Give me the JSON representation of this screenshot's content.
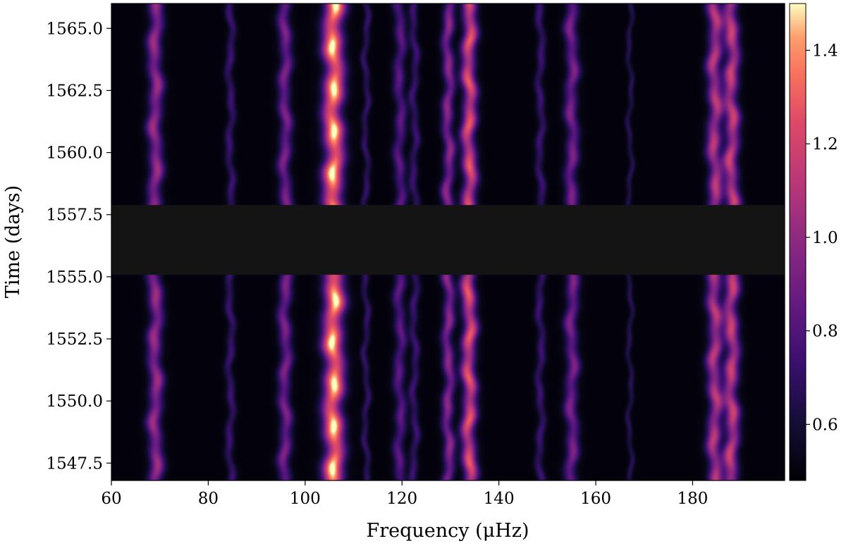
{
  "chart_data": {
    "type": "heatmap",
    "title": "",
    "xlabel": "Frequency (μHz)",
    "ylabel": "Time (days)",
    "xlim": [
      60,
      199
    ],
    "ylim": [
      1546.8,
      1566.0
    ],
    "x_ticks": [
      60,
      80,
      100,
      120,
      140,
      160,
      180
    ],
    "x_tick_labels": [
      "60",
      "80",
      "100",
      "120",
      "140",
      "160",
      "180"
    ],
    "y_ticks": [
      1547.5,
      1550.0,
      1552.5,
      1555.0,
      1557.5,
      1560.0,
      1562.5,
      1565.0
    ],
    "y_tick_labels": [
      "1547.5",
      "1550.0",
      "1552.5",
      "1555.0",
      "1557.5",
      "1560.0",
      "1562.5",
      "1565.0"
    ],
    "colormap": "magma",
    "colorbar": {
      "range": [
        0.48,
        1.5
      ],
      "ticks": [
        0.6,
        0.8,
        1.0,
        1.2,
        1.4
      ],
      "tick_labels": [
        "0.6",
        "0.8",
        "1.0",
        "1.2",
        "1.4"
      ]
    },
    "data_gap": {
      "time_range": [
        1555.1,
        1557.9
      ],
      "color": "#141414"
    },
    "background_value": 0.5,
    "ridges": [
      {
        "freq": 69.0,
        "width": 1.0,
        "amp": 1.05
      },
      {
        "freq": 84.5,
        "width": 0.6,
        "amp": 0.75
      },
      {
        "freq": 95.8,
        "width": 0.9,
        "amp": 0.95
      },
      {
        "freq": 105.8,
        "width": 1.4,
        "amp": 1.55
      },
      {
        "freq": 112.5,
        "width": 0.5,
        "amp": 0.72
      },
      {
        "freq": 119.5,
        "width": 0.8,
        "amp": 0.85
      },
      {
        "freq": 122.5,
        "width": 0.6,
        "amp": 0.75
      },
      {
        "freq": 129.5,
        "width": 0.8,
        "amp": 1.0
      },
      {
        "freq": 133.8,
        "width": 1.0,
        "amp": 1.3
      },
      {
        "freq": 148.5,
        "width": 0.6,
        "amp": 0.75
      },
      {
        "freq": 155.0,
        "width": 0.9,
        "amp": 0.95
      },
      {
        "freq": 167.0,
        "width": 0.4,
        "amp": 0.68
      },
      {
        "freq": 184.5,
        "width": 1.0,
        "amp": 1.15
      },
      {
        "freq": 188.0,
        "width": 1.0,
        "amp": 1.2
      }
    ]
  }
}
